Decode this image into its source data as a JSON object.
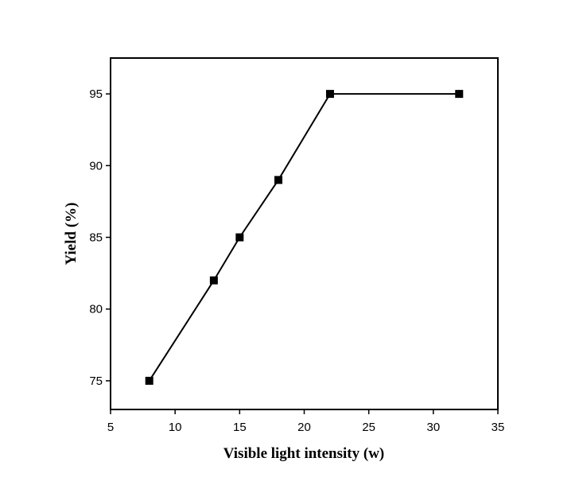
{
  "chart_data": {
    "type": "line",
    "title": "",
    "xlabel": "Visible light intensity (w)",
    "ylabel": "Yield (%)",
    "xlim": [
      5,
      35
    ],
    "ylim": [
      73,
      97.5
    ],
    "xticks": [
      5,
      10,
      15,
      20,
      25,
      30,
      35
    ],
    "yticks": [
      75,
      80,
      85,
      90,
      95
    ],
    "grid": false,
    "legend": "none",
    "marker": "square",
    "color": "#000000",
    "series": [
      {
        "x": [
          8,
          13,
          15,
          18,
          22,
          32
        ],
        "y": [
          75,
          82,
          85,
          89,
          95,
          95
        ]
      }
    ]
  }
}
